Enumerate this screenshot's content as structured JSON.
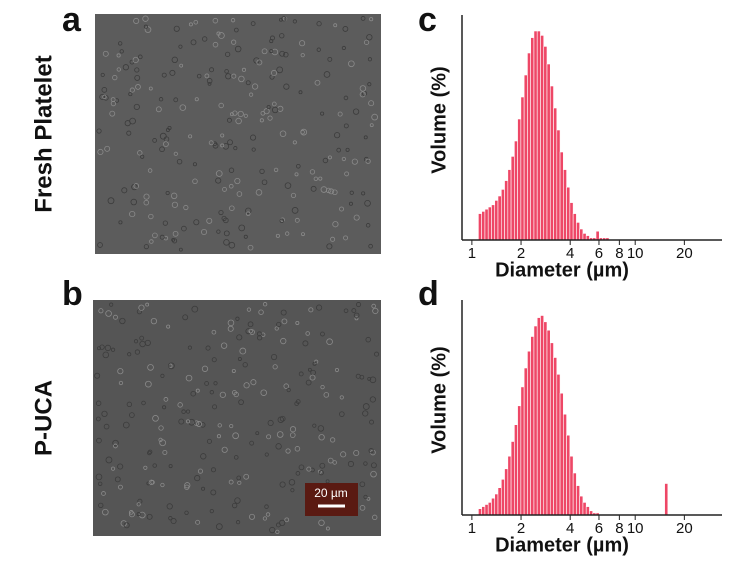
{
  "panels": [
    "a",
    "b",
    "c",
    "d"
  ],
  "row_labels": [
    "Fresh Platelet",
    "P-UCA"
  ],
  "scale_bar": "20 µm",
  "chart_data": [
    {
      "type": "histogram",
      "ylabel": "Volume (%)",
      "xlabel": "Diameter (µm)",
      "xscale": "log",
      "color": "#ee4766",
      "xlim": [
        0.87,
        34
      ],
      "ylim": [
        0,
        100
      ],
      "xticks": [
        1,
        2,
        4,
        6,
        8,
        10,
        20
      ],
      "bins": [
        1.096,
        1.148,
        1.202,
        1.259,
        1.318,
        1.38,
        1.445,
        1.514,
        1.585,
        1.66,
        1.738,
        1.82,
        1.905,
        1.995,
        2.089,
        2.188,
        2.291,
        2.399,
        2.512,
        2.63,
        2.754,
        2.884,
        3.02,
        3.162,
        3.311,
        3.467,
        3.631,
        3.802,
        3.981,
        4.169,
        4.365,
        4.571,
        4.786,
        5.012,
        5.248,
        5.495,
        5.754,
        6.026,
        6.31,
        6.607,
        6.918,
        7.244
      ],
      "values": [
        12,
        13,
        14,
        15,
        16,
        18,
        20,
        23,
        27,
        32,
        38,
        45,
        55,
        65,
        75,
        85,
        92,
        95,
        95,
        93,
        88,
        80,
        70,
        60,
        50,
        40,
        32,
        24,
        17,
        12,
        8,
        5,
        3,
        2,
        1,
        1,
        4,
        1,
        1,
        1,
        0
      ]
    },
    {
      "type": "histogram",
      "ylabel": "Volume (%)",
      "xlabel": "Diameter (µm)",
      "xscale": "log",
      "color": "#ee4766",
      "xlim": [
        0.87,
        34
      ],
      "ylim": [
        0,
        100
      ],
      "xticks": [
        1,
        2,
        4,
        6,
        8,
        10,
        20
      ],
      "bins": [
        1.096,
        1.148,
        1.202,
        1.259,
        1.318,
        1.38,
        1.445,
        1.514,
        1.585,
        1.66,
        1.738,
        1.82,
        1.905,
        1.995,
        2.089,
        2.188,
        2.291,
        2.399,
        2.512,
        2.63,
        2.754,
        2.884,
        3.02,
        3.162,
        3.311,
        3.467,
        3.631,
        3.802,
        3.981,
        4.169,
        4.365,
        4.571,
        4.786,
        5.012,
        5.248,
        5.495,
        5.754,
        6.026,
        6.31,
        6.607,
        6.918,
        7.244,
        7.586,
        7.943,
        8.318,
        8.71,
        9.12,
        9.55,
        10.0,
        10.47,
        10.96,
        11.48,
        12.02,
        12.59,
        13.18,
        13.8,
        14.45,
        15.14,
        15.85
      ],
      "values": [
        3,
        4,
        5,
        6,
        8,
        10,
        13,
        17,
        22,
        28,
        35,
        43,
        52,
        61,
        70,
        78,
        85,
        90,
        94,
        95,
        92,
        88,
        82,
        75,
        67,
        58,
        48,
        38,
        28,
        20,
        14,
        9,
        6,
        4,
        2,
        1,
        1,
        0,
        0,
        0,
        0,
        0,
        0,
        0,
        0,
        0,
        0,
        0,
        0,
        0,
        0,
        0,
        0,
        0,
        0,
        0,
        0,
        15
      ]
    }
  ]
}
